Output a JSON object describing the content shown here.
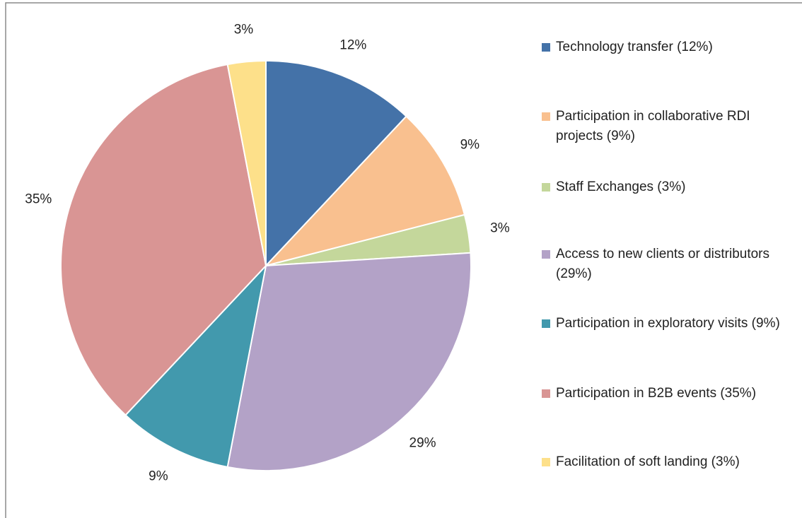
{
  "chart_data": {
    "type": "pie",
    "categories": [
      "Technology transfer (12%)",
      "Participation in collaborative RDI projects (9%)",
      "Staff Exchanges (3%)",
      "Access to new clients or distributors (29%)",
      "Participation in exploratory visits (9%)",
      "Participation in B2B events (35%)",
      "Facilitation of soft landing (3%)"
    ],
    "values": [
      12,
      9,
      3,
      29,
      9,
      35,
      3
    ],
    "value_labels": [
      "12%",
      "9%",
      "3%",
      "29%",
      "9%",
      "35%",
      "3%"
    ],
    "colors": [
      "#4472a8",
      "#f9c08f",
      "#c4d79b",
      "#b3a2c7",
      "#4299ad",
      "#d99594",
      "#fde08a"
    ],
    "legend": "right"
  }
}
